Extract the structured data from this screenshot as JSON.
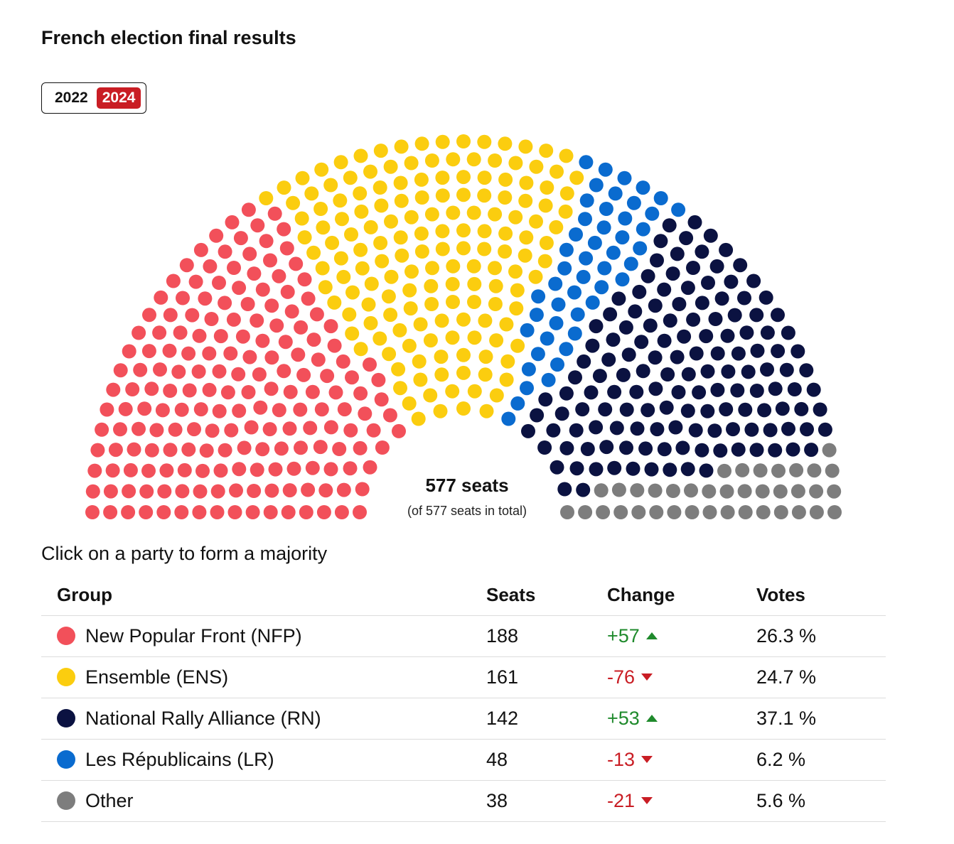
{
  "title": "French election final results",
  "years": [
    {
      "label": "2022",
      "active": false
    },
    {
      "label": "2024",
      "active": true
    }
  ],
  "summary": {
    "seats_label": "577 seats",
    "sub_label": "(of 577 seats in total)"
  },
  "prompt": "Click on a party to form a majority",
  "table": {
    "headers": {
      "group": "Group",
      "seats": "Seats",
      "change": "Change",
      "votes": "Votes"
    },
    "rows": [
      {
        "group": "New Popular Front (NFP)",
        "seats": "188",
        "change": "+57",
        "direction": "up",
        "votes": "26.3 %",
        "color": "#f2505a"
      },
      {
        "group": "Ensemble (ENS)",
        "seats": "161",
        "change": "-76",
        "direction": "down",
        "votes": "24.7 %",
        "color": "#fbcd0f"
      },
      {
        "group": "National Rally Alliance (RN)",
        "seats": "142",
        "change": "+53",
        "direction": "up",
        "votes": "37.1 %",
        "color": "#0b1241"
      },
      {
        "group": "Les Républicains (LR)",
        "seats": "48",
        "change": "-13",
        "direction": "down",
        "votes": "6.2 %",
        "color": "#0a6bcf"
      },
      {
        "group": "Other",
        "seats": "38",
        "change": "-21",
        "direction": "down",
        "votes": "5.6 %",
        "color": "#7d7d7d"
      }
    ]
  },
  "chart_data": {
    "type": "parliament",
    "total_seats": 577,
    "series": [
      {
        "name": "New Popular Front (NFP)",
        "value": 188,
        "color": "#f2505a"
      },
      {
        "name": "Ensemble (ENS)",
        "value": 161,
        "color": "#fbcd0f"
      },
      {
        "name": "Les Républicains (LR)",
        "value": 48,
        "color": "#0a6bcf"
      },
      {
        "name": "National Rally Alliance (RN)",
        "value": 142,
        "color": "#0b1241"
      },
      {
        "name": "Other",
        "value": 38,
        "color": "#7d7d7d"
      }
    ]
  }
}
